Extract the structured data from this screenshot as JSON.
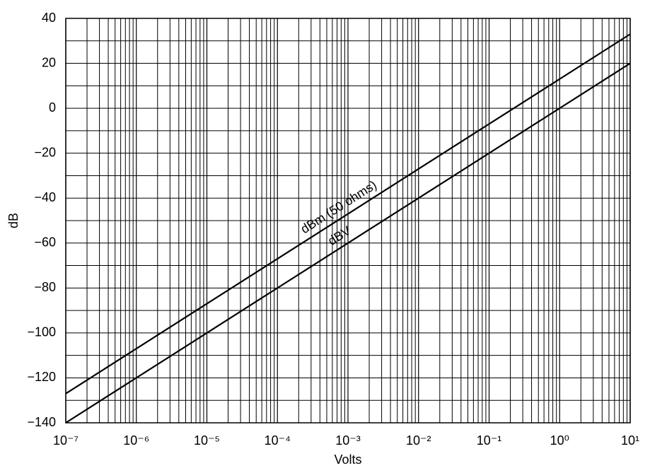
{
  "chart_data": {
    "type": "line",
    "x_label": "Volts",
    "y_label": "dB",
    "x": [
      1e-07,
      10
    ],
    "series": [
      {
        "name": "dBm (50 ohms)",
        "color": "#000000",
        "values": [
          -127,
          33
        ]
      },
      {
        "name": "dBV",
        "color": "#000000",
        "values": [
          -140,
          20
        ]
      }
    ],
    "x_log": true,
    "xlim": [
      1e-07,
      10
    ],
    "xticks": [
      {
        "value": 1e-07,
        "label": "10⁻⁷"
      },
      {
        "value": 1e-06,
        "label": "10⁻⁶"
      },
      {
        "value": 1e-05,
        "label": "10⁻⁵"
      },
      {
        "value": 0.0001,
        "label": "10⁻⁴"
      },
      {
        "value": 0.001,
        "label": "10⁻³"
      },
      {
        "value": 0.01,
        "label": "10⁻²"
      },
      {
        "value": 0.1,
        "label": "10⁻¹"
      },
      {
        "value": 1,
        "label": "10⁰"
      },
      {
        "value": 10,
        "label": "10¹"
      }
    ],
    "ylim": [
      -140,
      40
    ],
    "yticks": [
      {
        "value": -140,
        "label": "−140"
      },
      {
        "value": -120,
        "label": "−120"
      },
      {
        "value": -100,
        "label": "−100"
      },
      {
        "value": -80,
        "label": "−80"
      },
      {
        "value": -60,
        "label": "−60"
      },
      {
        "value": -40,
        "label": "−40"
      },
      {
        "value": -20,
        "label": "−20"
      },
      0,
      20,
      40
    ],
    "grid": true
  }
}
